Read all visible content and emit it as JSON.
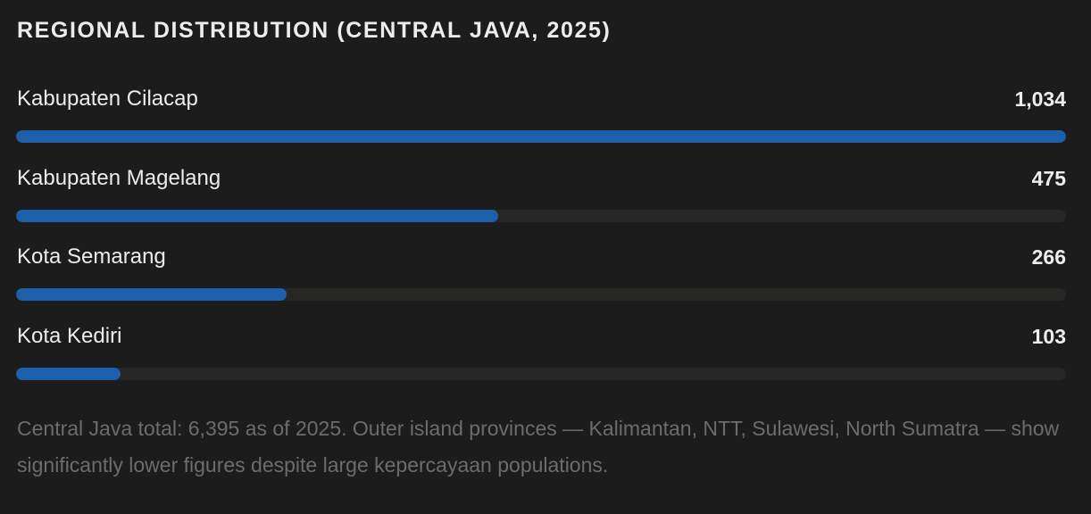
{
  "title": "REGIONAL DISTRIBUTION (CENTRAL JAVA, 2025)",
  "chart_data": {
    "type": "bar",
    "orientation": "horizontal",
    "title": "REGIONAL DISTRIBUTION (CENTRAL JAVA, 2025)",
    "categories": [
      "Kabupaten Cilacap",
      "Kabupaten Magelang",
      "Kota Semarang",
      "Kota Kediri"
    ],
    "values": [
      1034,
      475,
      266,
      103
    ],
    "value_labels": [
      "1,034",
      "475",
      "266",
      "103"
    ],
    "xlim": [
      0,
      1034
    ],
    "grid": false,
    "legend": "none",
    "colors": {
      "bar": "#1e5fac",
      "track": "#262624",
      "background": "#1c1c1c"
    }
  },
  "rows": [
    {
      "label": "Kabupaten Cilacap",
      "value_text": "1,034"
    },
    {
      "label": "Kabupaten Magelang",
      "value_text": "475"
    },
    {
      "label": "Kota Semarang",
      "value_text": "266"
    },
    {
      "label": "Kota Kediri",
      "value_text": "103"
    }
  ],
  "note": "Central Java total: 6,395 as of 2025. Outer island provinces — Kalimantan, NTT, Sulawesi, North Sumatra — show significantly lower figures despite large kepercayaan populations."
}
